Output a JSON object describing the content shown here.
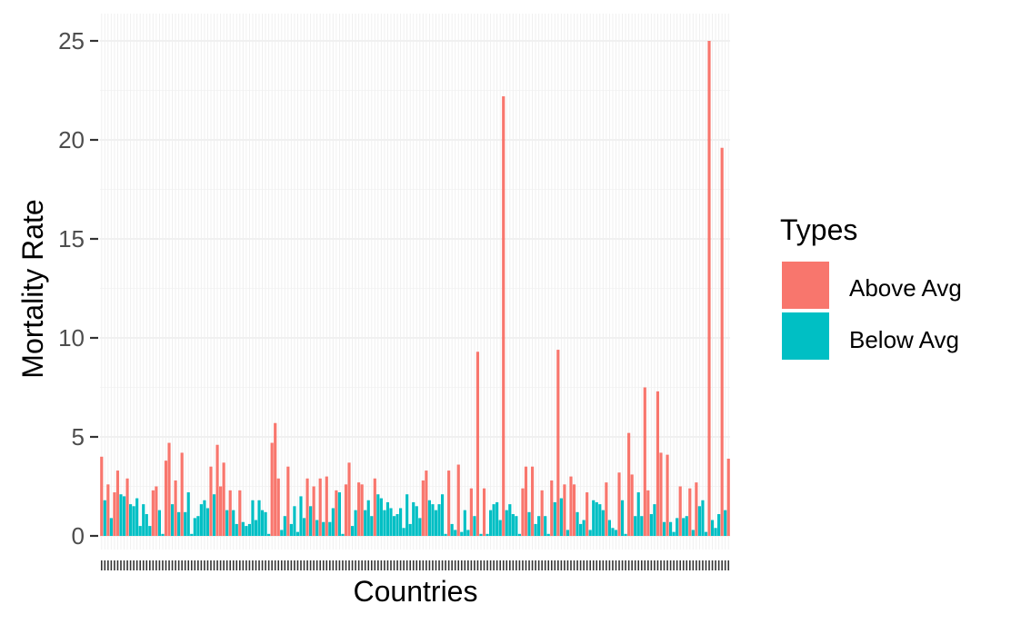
{
  "chart_data": {
    "type": "bar",
    "xlabel": "Countries",
    "ylabel": "Mortality Rate",
    "ylim": [
      0,
      25.6
    ],
    "yticks": [
      0,
      5,
      10,
      15,
      20,
      25
    ],
    "ytick_labels": [
      "0",
      "5",
      "10",
      "15",
      "20",
      "25"
    ],
    "grid": true,
    "legend": {
      "title": "Types",
      "position": "right",
      "entries": [
        {
          "label": "Above Avg",
          "color": "#F8766D"
        },
        {
          "label": "Below Avg",
          "color": "#00BFC4"
        }
      ]
    },
    "x_tick_labels_visible": false,
    "series_colors": {
      "Above Avg": "#F8766D",
      "Below Avg": "#00BFC4"
    },
    "values": [
      4.0,
      1.8,
      2.6,
      0.9,
      2.2,
      3.3,
      2.1,
      2.0,
      2.9,
      1.6,
      1.5,
      1.9,
      0.5,
      1.6,
      1.1,
      0.5,
      2.3,
      2.5,
      1.3,
      0.1,
      3.8,
      4.7,
      1.6,
      2.8,
      1.2,
      4.2,
      1.2,
      2.2,
      0.1,
      0.9,
      1.0,
      1.6,
      1.8,
      1.4,
      3.5,
      2.1,
      4.6,
      2.5,
      3.7,
      1.3,
      2.3,
      1.3,
      0.6,
      2.3,
      0.7,
      0.5,
      0.6,
      1.8,
      0.8,
      1.8,
      1.3,
      1.2,
      0.1,
      4.7,
      5.7,
      2.9,
      0.3,
      1.0,
      3.5,
      0.6,
      1.5,
      0.2,
      2.0,
      0.9,
      2.9,
      1.5,
      2.5,
      0.8,
      2.9,
      0.7,
      3.0,
      0.7,
      1.4,
      2.3,
      2.2,
      0.1,
      2.6,
      3.7,
      0.5,
      1.3,
      2.7,
      2.6,
      1.3,
      1.8,
      1.0,
      2.9,
      2.1,
      1.9,
      1.3,
      1.7,
      1.4,
      1.0,
      1.1,
      1.4,
      0.4,
      2.1,
      0.6,
      1.7,
      1.5,
      0.9,
      2.8,
      3.3,
      1.8,
      1.6,
      1.3,
      1.6,
      2.1,
      0.1,
      3.3,
      0.6,
      0.3,
      3.6,
      0.2,
      1.3,
      0.3,
      2.4,
      1.0,
      9.3,
      0.1,
      2.4,
      0.1,
      1.3,
      1.6,
      1.7,
      0.8,
      22.2,
      1.3,
      1.6,
      1.1,
      1.0,
      0.1,
      2.4,
      3.5,
      1.2,
      3.5,
      0.6,
      1.0,
      2.3,
      1.0,
      0.1,
      2.8,
      1.7,
      9.4,
      1.9,
      2.6,
      0.3,
      3.0,
      2.6,
      1.2,
      0.6,
      0.8,
      2.2,
      0.3,
      1.8,
      1.7,
      1.6,
      1.3,
      2.7,
      0.8,
      0.4,
      0.3,
      3.2,
      1.8,
      0.1,
      5.2,
      3.1,
      1.0,
      2.2,
      1.0,
      7.5,
      2.3,
      1.1,
      1.6,
      7.3,
      4.2,
      0.7,
      4.1,
      0.7,
      0.2,
      0.9,
      2.5,
      0.9,
      1.0,
      2.4,
      0.3,
      2.7,
      1.5,
      1.8,
      0.2,
      25.0,
      0.8,
      0.4,
      1.1,
      19.6,
      1.3,
      3.9
    ],
    "types": [
      "Above Avg",
      "Below Avg",
      "Above Avg",
      "Below Avg",
      "Above Avg",
      "Above Avg",
      "Below Avg",
      "Below Avg",
      "Above Avg",
      "Below Avg",
      "Below Avg",
      "Below Avg",
      "Below Avg",
      "Below Avg",
      "Below Avg",
      "Below Avg",
      "Above Avg",
      "Above Avg",
      "Below Avg",
      "Below Avg",
      "Above Avg",
      "Above Avg",
      "Below Avg",
      "Above Avg",
      "Below Avg",
      "Above Avg",
      "Below Avg",
      "Below Avg",
      "Below Avg",
      "Below Avg",
      "Below Avg",
      "Below Avg",
      "Below Avg",
      "Below Avg",
      "Above Avg",
      "Below Avg",
      "Above Avg",
      "Above Avg",
      "Above Avg",
      "Below Avg",
      "Above Avg",
      "Below Avg",
      "Below Avg",
      "Above Avg",
      "Below Avg",
      "Below Avg",
      "Below Avg",
      "Below Avg",
      "Below Avg",
      "Below Avg",
      "Below Avg",
      "Below Avg",
      "Below Avg",
      "Above Avg",
      "Above Avg",
      "Above Avg",
      "Below Avg",
      "Below Avg",
      "Above Avg",
      "Below Avg",
      "Below Avg",
      "Below Avg",
      "Below Avg",
      "Below Avg",
      "Above Avg",
      "Below Avg",
      "Above Avg",
      "Below Avg",
      "Above Avg",
      "Below Avg",
      "Above Avg",
      "Below Avg",
      "Below Avg",
      "Above Avg",
      "Below Avg",
      "Below Avg",
      "Above Avg",
      "Above Avg",
      "Below Avg",
      "Below Avg",
      "Above Avg",
      "Above Avg",
      "Below Avg",
      "Below Avg",
      "Below Avg",
      "Above Avg",
      "Below Avg",
      "Below Avg",
      "Below Avg",
      "Below Avg",
      "Below Avg",
      "Below Avg",
      "Below Avg",
      "Below Avg",
      "Below Avg",
      "Below Avg",
      "Below Avg",
      "Below Avg",
      "Below Avg",
      "Below Avg",
      "Above Avg",
      "Above Avg",
      "Below Avg",
      "Below Avg",
      "Below Avg",
      "Below Avg",
      "Below Avg",
      "Below Avg",
      "Above Avg",
      "Below Avg",
      "Below Avg",
      "Above Avg",
      "Below Avg",
      "Below Avg",
      "Below Avg",
      "Above Avg",
      "Below Avg",
      "Above Avg",
      "Below Avg",
      "Above Avg",
      "Below Avg",
      "Below Avg",
      "Below Avg",
      "Below Avg",
      "Below Avg",
      "Above Avg",
      "Below Avg",
      "Below Avg",
      "Below Avg",
      "Below Avg",
      "Below Avg",
      "Above Avg",
      "Above Avg",
      "Below Avg",
      "Above Avg",
      "Below Avg",
      "Below Avg",
      "Above Avg",
      "Below Avg",
      "Below Avg",
      "Above Avg",
      "Below Avg",
      "Above Avg",
      "Below Avg",
      "Above Avg",
      "Below Avg",
      "Above Avg",
      "Above Avg",
      "Below Avg",
      "Below Avg",
      "Below Avg",
      "Above Avg",
      "Below Avg",
      "Below Avg",
      "Below Avg",
      "Below Avg",
      "Below Avg",
      "Above Avg",
      "Below Avg",
      "Below Avg",
      "Below Avg",
      "Above Avg",
      "Below Avg",
      "Below Avg",
      "Above Avg",
      "Above Avg",
      "Below Avg",
      "Below Avg",
      "Below Avg",
      "Above Avg",
      "Above Avg",
      "Below Avg",
      "Below Avg",
      "Above Avg",
      "Above Avg",
      "Below Avg",
      "Above Avg",
      "Below Avg",
      "Below Avg",
      "Below Avg",
      "Above Avg",
      "Below Avg",
      "Below Avg",
      "Above Avg",
      "Below Avg",
      "Above Avg",
      "Below Avg",
      "Below Avg",
      "Below Avg",
      "Above Avg",
      "Below Avg",
      "Below Avg",
      "Below Avg",
      "Above Avg",
      "Below Avg",
      "Above Avg"
    ]
  }
}
